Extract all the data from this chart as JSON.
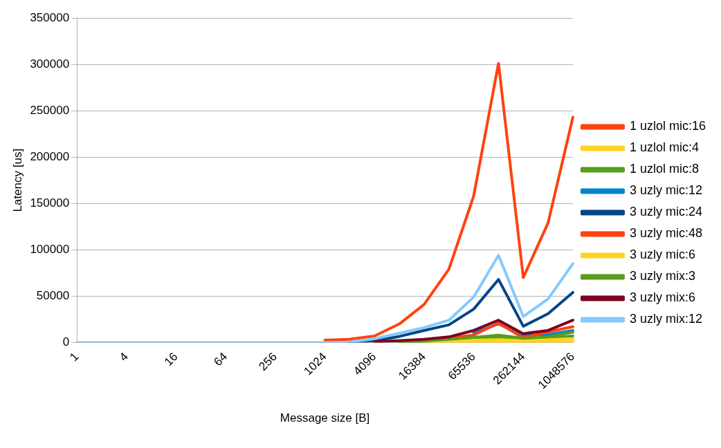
{
  "chart_data": {
    "type": "line",
    "xlabel": "Message size [B]",
    "ylabel": "Latency [us]",
    "categories": [
      "1",
      null,
      "4",
      null,
      "16",
      null,
      "64",
      null,
      "256",
      null,
      "1024",
      null,
      "4096",
      null,
      "16384",
      null,
      "65536",
      null,
      "262144",
      null,
      "1048576"
    ],
    "ylim": [
      0,
      350000
    ],
    "yticks": [
      0,
      50000,
      100000,
      150000,
      200000,
      250000,
      300000,
      350000
    ],
    "grid": "y",
    "legend": "right",
    "marker": "none",
    "line_style": "solid",
    "series": [
      {
        "name": "1 uzlol mic:16",
        "color": "#ff420e",
        "values": [
          null,
          null,
          null,
          null,
          null,
          null,
          null,
          null,
          null,
          null,
          2500,
          3500,
          7000,
          20000,
          41000,
          79000,
          158000,
          301000,
          70000,
          129000,
          243000
        ]
      },
      {
        "name": "1 uzlol mic:4",
        "color": "#ffd320",
        "values": [
          null,
          null,
          null,
          null,
          null,
          null,
          null,
          null,
          null,
          null,
          null,
          null,
          null,
          null,
          100,
          200,
          300,
          500,
          300,
          500,
          800
        ]
      },
      {
        "name": "1 uzlol mic:8",
        "color": "#579d1c",
        "values": [
          null,
          null,
          null,
          null,
          null,
          null,
          null,
          null,
          null,
          null,
          null,
          null,
          null,
          500,
          1000,
          2500,
          4000,
          5500,
          4000,
          5000,
          7000
        ]
      },
      {
        "name": "3 uzly mic:12",
        "color": "#0084d1",
        "values": [
          null,
          null,
          null,
          null,
          null,
          null,
          null,
          null,
          null,
          null,
          null,
          null,
          null,
          null,
          null,
          null,
          10500,
          20000,
          7500,
          8500,
          13000
        ]
      },
      {
        "name": "3 uzly mic:24",
        "color": "#004586",
        "values": [
          null,
          null,
          null,
          null,
          null,
          null,
          null,
          null,
          null,
          null,
          null,
          500,
          2000,
          6500,
          13000,
          19000,
          36000,
          68000,
          17500,
          31000,
          54000
        ]
      },
      {
        "name": "3 uzly mic:48",
        "color": "#ff420e",
        "values": [
          null,
          null,
          null,
          null,
          null,
          null,
          null,
          null,
          null,
          null,
          null,
          null,
          null,
          null,
          2500,
          5000,
          8000,
          21000,
          5000,
          11500,
          17000
        ]
      },
      {
        "name": "3 uzly mic:6",
        "color": "#ffd320",
        "values": [
          null,
          null,
          null,
          null,
          null,
          null,
          null,
          null,
          null,
          null,
          null,
          null,
          null,
          null,
          600,
          1500,
          2500,
          3000,
          2000,
          3000,
          4000
        ]
      },
      {
        "name": "3 uzly mix:3",
        "color": "#579d1c",
        "values": [
          null,
          null,
          null,
          null,
          null,
          null,
          null,
          null,
          null,
          null,
          null,
          null,
          null,
          800,
          1500,
          3500,
          5500,
          8000,
          4500,
          6000,
          11000
        ]
      },
      {
        "name": "3 uzly mix:6",
        "color": "#7e0021",
        "values": [
          null,
          null,
          null,
          null,
          null,
          null,
          null,
          null,
          null,
          null,
          null,
          null,
          800,
          2000,
          3500,
          6000,
          13000,
          24000,
          9500,
          13000,
          24000
        ]
      },
      {
        "name": "3 uzly mix:12",
        "color": "#83caff",
        "values": [
          0,
          0,
          0,
          0,
          0,
          0,
          0,
          0,
          0,
          0,
          0,
          500,
          4000,
          10000,
          16000,
          24000,
          49000,
          94000,
          28000,
          47000,
          85000
        ]
      }
    ]
  }
}
